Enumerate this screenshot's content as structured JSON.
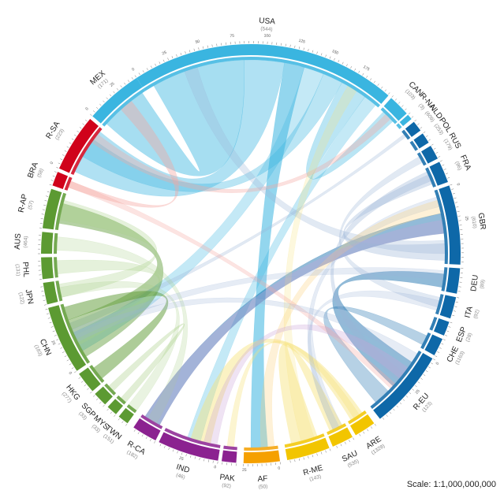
{
  "scale": "Scale: 1:1,000,000,000",
  "colors": {
    "americas_light": "#3ab5e0",
    "americas_red": "#d0021b",
    "asia_green": "#5c9a32",
    "south_asia_purple": "#8b2290",
    "africa_orange": "#f5a000",
    "middle_east_yellow": "#f2c500",
    "europe_blue": "#0e68a8"
  },
  "segments": [
    {
      "code": "USA",
      "value": "(544)",
      "color": "#3ab5e0"
    },
    {
      "code": "CAN",
      "value": "(103)",
      "color": "#3ab5e0"
    },
    {
      "code": "R-NA",
      "value": "(3)",
      "color": "#3ab5e0"
    },
    {
      "code": "NLD",
      "value": "(609)",
      "color": "#0e68a8"
    },
    {
      "code": "POL",
      "value": "(253)",
      "color": "#0e68a8"
    },
    {
      "code": "RUS",
      "value": "(179)",
      "color": "#0e68a8"
    },
    {
      "code": "FRA",
      "value": "(96)",
      "color": "#0e68a8"
    },
    {
      "code": "GBR",
      "value": "(610)",
      "color": "#0e68a8"
    },
    {
      "code": "DEU",
      "value": "(89)",
      "color": "#0e68a8"
    },
    {
      "code": "ITA",
      "value": "(92)",
      "color": "#0e68a8"
    },
    {
      "code": "ESP",
      "value": "(28)",
      "color": "#0e68a8"
    },
    {
      "code": "CHE",
      "value": "(1163)",
      "color": "#0e68a8"
    },
    {
      "code": "R-EU",
      "value": "(123)",
      "color": "#0e68a8"
    },
    {
      "code": "ARE",
      "value": "(1328)",
      "color": "#f2c500"
    },
    {
      "code": "SAU",
      "value": "(535)",
      "color": "#f2c500"
    },
    {
      "code": "R-ME",
      "value": "(143)",
      "color": "#f2c500"
    },
    {
      "code": "AF",
      "value": "(50)",
      "color": "#f5a000"
    },
    {
      "code": "PAK",
      "value": "(92)",
      "color": "#8b2290"
    },
    {
      "code": "IND",
      "value": "(46)",
      "color": "#8b2290"
    },
    {
      "code": "R-CA",
      "value": "(182)",
      "color": "#8b2290"
    },
    {
      "code": "TWN",
      "value": "(151)",
      "color": "#5c9a32"
    },
    {
      "code": "MYS",
      "value": "(33)",
      "color": "#5c9a32"
    },
    {
      "code": "SGP",
      "value": "(33)",
      "color": "#5c9a32"
    },
    {
      "code": "HKG",
      "value": "(277)",
      "color": "#5c9a32"
    },
    {
      "code": "CHN",
      "value": "(183)",
      "color": "#5c9a32"
    },
    {
      "code": "JPN",
      "value": "(122)",
      "color": "#5c9a32"
    },
    {
      "code": "PHL",
      "value": "(131)",
      "color": "#5c9a32"
    },
    {
      "code": "AUS",
      "value": "(464)",
      "color": "#5c9a32"
    },
    {
      "code": "R-AP",
      "value": "(57)",
      "color": "#5c9a32"
    },
    {
      "code": "BRA",
      "value": "(58)",
      "color": "#d0021b"
    },
    {
      "code": "R-SA",
      "value": "(223)",
      "color": "#d0021b"
    },
    {
      "code": "MEX",
      "value": "(171)",
      "color": "#3ab5e0"
    }
  ],
  "ticks": [
    {
      "text": "0",
      "segment": "USA"
    },
    {
      "text": "25",
      "segment": "USA"
    },
    {
      "text": "50",
      "segment": "USA"
    },
    {
      "text": "75",
      "segment": "USA"
    },
    {
      "text": "100",
      "segment": "USA"
    },
    {
      "text": "125",
      "segment": "USA"
    },
    {
      "text": "150",
      "segment": "USA"
    },
    {
      "text": "175",
      "segment": "USA"
    },
    {
      "text": "0",
      "segment": "GBR"
    },
    {
      "text": "25",
      "segment": "GBR"
    },
    {
      "text": "0",
      "segment": "CHN"
    },
    {
      "text": "25",
      "segment": "CHN"
    },
    {
      "text": "0",
      "segment": "AF"
    },
    {
      "text": "25",
      "segment": "AF"
    },
    {
      "text": "0",
      "segment": "MEX"
    },
    {
      "text": "25",
      "segment": "MEX"
    },
    {
      "text": "0",
      "segment": "R-SA"
    },
    {
      "text": "0",
      "segment": "IND"
    },
    {
      "text": "25",
      "segment": "IND"
    },
    {
      "text": "0",
      "segment": "R-EU"
    },
    {
      "text": "25",
      "segment": "R-EU"
    }
  ]
}
